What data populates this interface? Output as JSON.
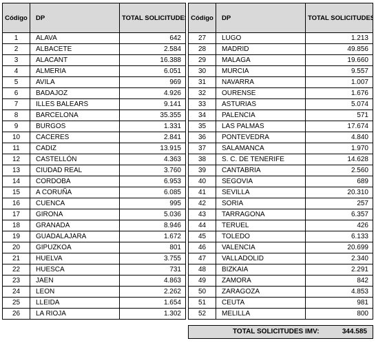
{
  "headers": {
    "code": "Código",
    "dp": "DP",
    "total": "TOTAL SOLICITUDES"
  },
  "left_rows": [
    {
      "code": "1",
      "dp": "ALAVA",
      "total": "642"
    },
    {
      "code": "2",
      "dp": "ALBACETE",
      "total": "2.584"
    },
    {
      "code": "3",
      "dp": "ALACANT",
      "total": "16.388"
    },
    {
      "code": "4",
      "dp": "ALMERIA",
      "total": "6.051"
    },
    {
      "code": "5",
      "dp": "AVILA",
      "total": "969"
    },
    {
      "code": "6",
      "dp": "BADAJOZ",
      "total": "4.926"
    },
    {
      "code": "7",
      "dp": "ILLES BALEARS",
      "total": "9.141"
    },
    {
      "code": "8",
      "dp": "BARCELONA",
      "total": "35.355"
    },
    {
      "code": "9",
      "dp": "BURGOS",
      "total": "1.331"
    },
    {
      "code": "10",
      "dp": "CACERES",
      "total": "2.841"
    },
    {
      "code": "11",
      "dp": "CADIZ",
      "total": "13.915"
    },
    {
      "code": "12",
      "dp": "CASTELLÓN",
      "total": "4.363"
    },
    {
      "code": "13",
      "dp": "CIUDAD REAL",
      "total": "3.760"
    },
    {
      "code": "14",
      "dp": "CORDOBA",
      "total": "6.953"
    },
    {
      "code": "15",
      "dp": "A CORUÑA",
      "total": "6.085"
    },
    {
      "code": "16",
      "dp": "CUENCA",
      "total": "995"
    },
    {
      "code": "17",
      "dp": "GIRONA",
      "total": "5.036"
    },
    {
      "code": "18",
      "dp": "GRANADA",
      "total": "8.946"
    },
    {
      "code": "19",
      "dp": "GUADALAJARA",
      "total": "1.672"
    },
    {
      "code": "20",
      "dp": "GIPUZKOA",
      "total": "801"
    },
    {
      "code": "21",
      "dp": "HUELVA",
      "total": "3.755"
    },
    {
      "code": "22",
      "dp": "HUESCA",
      "total": "731"
    },
    {
      "code": "23",
      "dp": "JAEN",
      "total": "4.863"
    },
    {
      "code": "24",
      "dp": "LEON",
      "total": "2.262"
    },
    {
      "code": "25",
      "dp": "LLEIDA",
      "total": "1.654"
    },
    {
      "code": "26",
      "dp": "LA RIOJA",
      "total": "1.302"
    }
  ],
  "right_rows": [
    {
      "code": "27",
      "dp": "LUGO",
      "total": "1.213"
    },
    {
      "code": "28",
      "dp": "MADRID",
      "total": "49.856"
    },
    {
      "code": "29",
      "dp": "MALAGA",
      "total": "19.660"
    },
    {
      "code": "30",
      "dp": "MURCIA",
      "total": "9.557"
    },
    {
      "code": "31",
      "dp": "NAVARRA",
      "total": "1.007"
    },
    {
      "code": "32",
      "dp": "OURENSE",
      "total": "1.676"
    },
    {
      "code": "33",
      "dp": "ASTURIAS",
      "total": "5.074"
    },
    {
      "code": "34",
      "dp": "PALENCIA",
      "total": "571"
    },
    {
      "code": "35",
      "dp": "LAS PALMAS",
      "total": "17.674"
    },
    {
      "code": "36",
      "dp": "PONTEVEDRA",
      "total": "4.840"
    },
    {
      "code": "37",
      "dp": "SALAMANCA",
      "total": "1.970"
    },
    {
      "code": "38",
      "dp": "S. C. DE TENERIFE",
      "total": "14.628"
    },
    {
      "code": "39",
      "dp": "CANTABRIA",
      "total": "2.560"
    },
    {
      "code": "40",
      "dp": "SEGOVIA",
      "total": "689"
    },
    {
      "code": "41",
      "dp": "SEVILLA",
      "total": "20.310"
    },
    {
      "code": "42",
      "dp": "SORIA",
      "total": "257"
    },
    {
      "code": "43",
      "dp": "TARRAGONA",
      "total": "6.357"
    },
    {
      "code": "44",
      "dp": "TERUEL",
      "total": "426"
    },
    {
      "code": "45",
      "dp": "TOLEDO",
      "total": "6.133"
    },
    {
      "code": "46",
      "dp": "VALENCIA",
      "total": "20.699"
    },
    {
      "code": "47",
      "dp": "VALLADOLID",
      "total": "2.340"
    },
    {
      "code": "48",
      "dp": "BIZKAIA",
      "total": "2.291"
    },
    {
      "code": "49",
      "dp": "ZAMORA",
      "total": "842"
    },
    {
      "code": "50",
      "dp": "ZARAGOZA",
      "total": "4.853"
    },
    {
      "code": "51",
      "dp": "CEUTA",
      "total": "981"
    },
    {
      "code": "52",
      "dp": "MELILLA",
      "total": "800"
    }
  ],
  "footer": {
    "label": "TOTAL SOLICITUDES IMV:",
    "value": "344.585"
  }
}
